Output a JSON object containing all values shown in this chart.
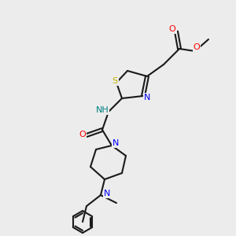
{
  "bg_color": "#ececec",
  "bond_color": "#1a1a1a",
  "bond_width": 1.5,
  "S_color": "#c8b400",
  "N_color": "#0000ff",
  "NH_color": "#008080",
  "O_color": "#ff0000",
  "atoms": {
    "S": "S",
    "N": "N",
    "NH": "NH",
    "O": "O"
  },
  "figsize": [
    3.0,
    3.0
  ],
  "dpi": 100
}
